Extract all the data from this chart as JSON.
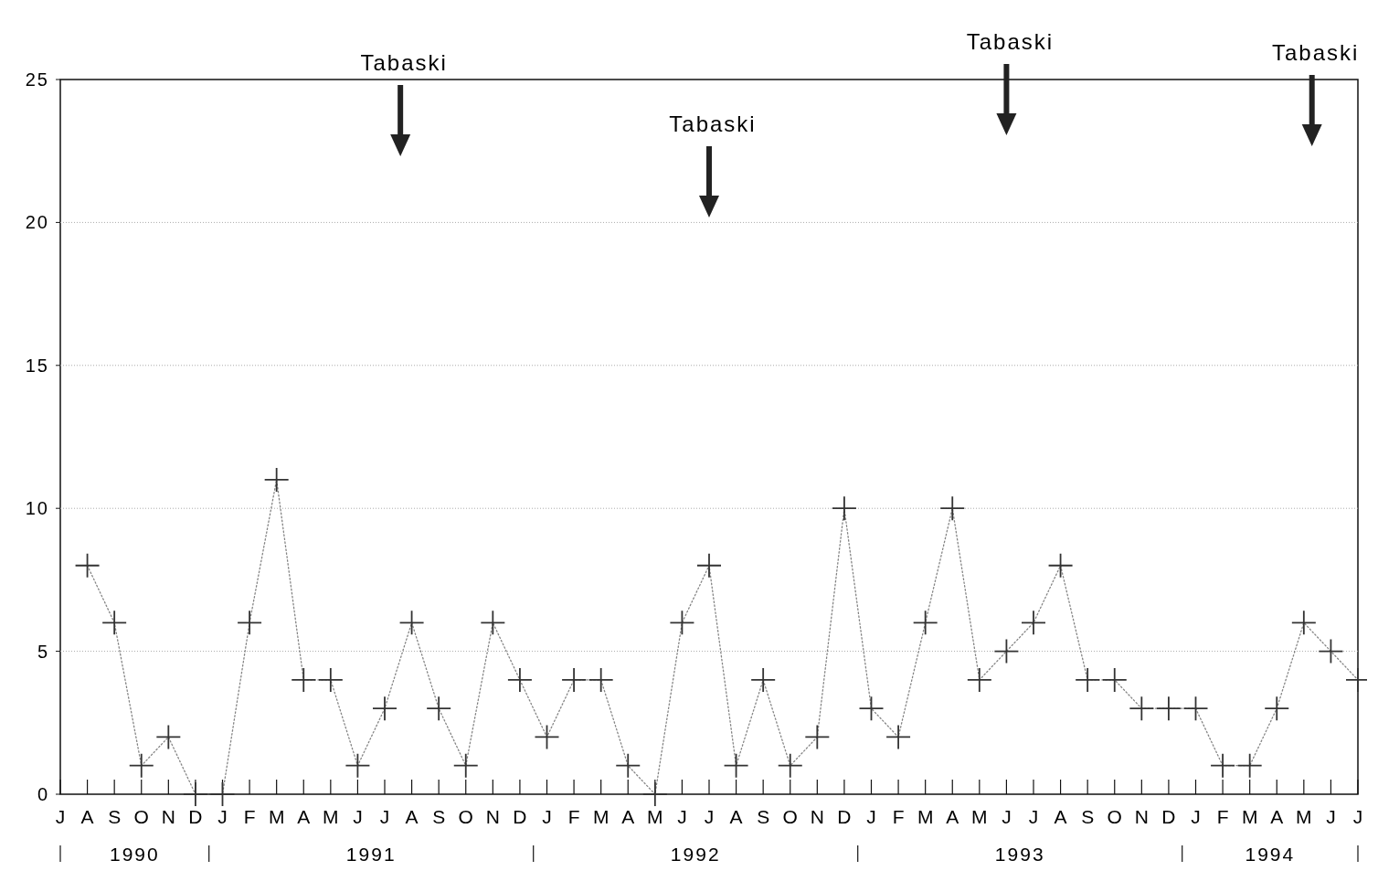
{
  "chart_data": {
    "type": "line",
    "categories": [
      "J",
      "A",
      "S",
      "O",
      "N",
      "D",
      "J",
      "F",
      "M",
      "A",
      "M",
      "J",
      "J",
      "A",
      "S",
      "O",
      "N",
      "D",
      "J",
      "F",
      "M",
      "A",
      "M",
      "J",
      "J",
      "A",
      "S",
      "O",
      "N",
      "D",
      "J",
      "F",
      "M",
      "A",
      "M",
      "J",
      "J",
      "A",
      "S",
      "O",
      "N",
      "D",
      "J",
      "F",
      "M",
      "A",
      "M",
      "J",
      "J"
    ],
    "series": [
      {
        "color": "#333333",
        "values": [
          null,
          8,
          6,
          1,
          2,
          0,
          0,
          6,
          11,
          4,
          4,
          1,
          3,
          6,
          3,
          1,
          6,
          4,
          2,
          4,
          4,
          1,
          0,
          6,
          8,
          1,
          4,
          1,
          2,
          10,
          3,
          2,
          6,
          10,
          4,
          5,
          6,
          8,
          4,
          4,
          3,
          3,
          3,
          1,
          1,
          3,
          6,
          5,
          4
        ]
      }
    ],
    "ylim": [
      0,
      25
    ],
    "yticks": [
      0,
      5,
      10,
      15,
      20,
      25
    ],
    "grid": "y",
    "marker": "cross",
    "line_style": "dotted",
    "annotations": [
      "1990",
      "1991",
      "1992",
      "1993",
      "1994",
      "Tabaski",
      "Tabaski",
      "Tabaski",
      "Tabaski"
    ]
  }
}
